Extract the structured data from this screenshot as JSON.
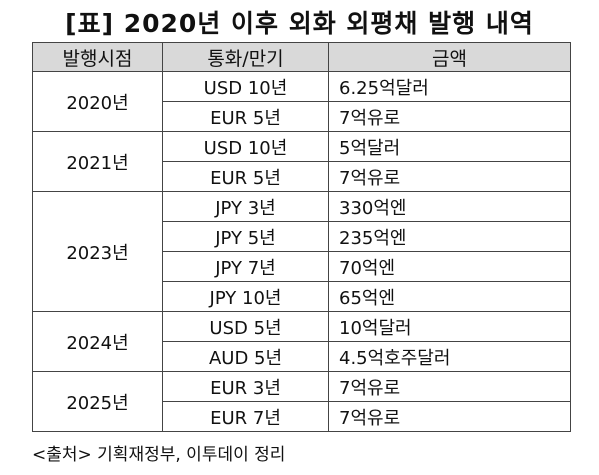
{
  "title": "[표] 2020년 이후 외화 외평채 발행 내역",
  "headers": [
    "발행시점",
    "통화/만기",
    "금액"
  ],
  "groups": [
    {
      "year": "2020년",
      "rows": [
        {
          "currency": "USD 10년",
          "amount": "6.25억달러"
        },
        {
          "currency": "EUR 5년",
          "amount": "7억유로"
        }
      ]
    },
    {
      "year": "2021년",
      "rows": [
        {
          "currency": "USD 10년",
          "amount": "5억달러"
        },
        {
          "currency": "EUR 5년",
          "amount": "7억유로"
        }
      ]
    },
    {
      "year": "2023년",
      "rows": [
        {
          "currency": "JPY 3년",
          "amount": "330억엔"
        },
        {
          "currency": "JPY 5년",
          "amount": "235억엔"
        },
        {
          "currency": "JPY 7년",
          "amount": "70억엔"
        },
        {
          "currency": "JPY 10년",
          "amount": "65억엔"
        }
      ]
    },
    {
      "year": "2024년",
      "rows": [
        {
          "currency": "USD 5년",
          "amount": "10억달러"
        },
        {
          "currency": "AUD 5년",
          "amount": "4.5억호주달러"
        }
      ]
    },
    {
      "year": "2025년",
      "rows": [
        {
          "currency": "EUR 3년",
          "amount": "7억유로"
        },
        {
          "currency": "EUR 7년",
          "amount": "7억유로"
        }
      ]
    }
  ],
  "source": "<출처> 기획재정부, 이투데이 정리"
}
